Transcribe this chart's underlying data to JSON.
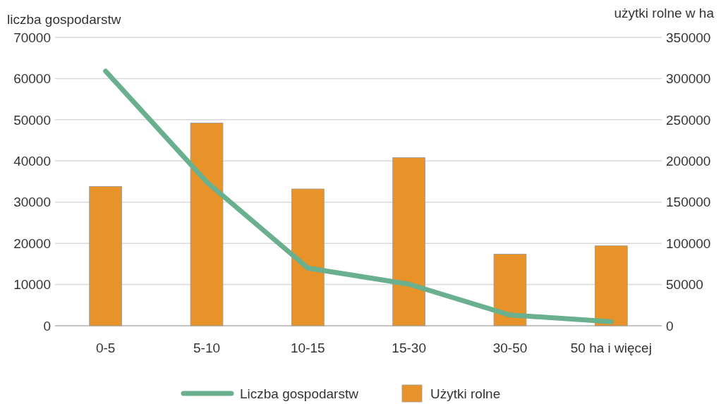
{
  "chart_data": {
    "type": "bar",
    "categories": [
      "0-5",
      "5-10",
      "10-15",
      "15-30",
      "30-50",
      "50 ha i więcej"
    ],
    "ylabel": "liczba gospodarstw",
    "y2label": "użytki rolne w ha",
    "series": [
      {
        "name": "Liczba gospodarstw",
        "type": "line",
        "color": "#6ab08f",
        "values": [
          61800,
          34900,
          14000,
          10100,
          2600,
          1000
        ]
      },
      {
        "name": "Użytki rolne",
        "axis": "y2",
        "color": "#e8922a",
        "values": [
          169000,
          246000,
          166000,
          204000,
          87000,
          97000
        ]
      }
    ],
    "ylim": [
      0,
      70000
    ],
    "yticks": [
      0,
      10000,
      20000,
      30000,
      40000,
      50000,
      60000,
      70000
    ],
    "y2lim": [
      0,
      350000
    ],
    "y2ticks": [
      0,
      50000,
      100000,
      150000,
      200000,
      250000,
      300000,
      350000
    ],
    "grid": "y",
    "legend": "bottom",
    "marker": "none",
    "line_style": "solid"
  }
}
